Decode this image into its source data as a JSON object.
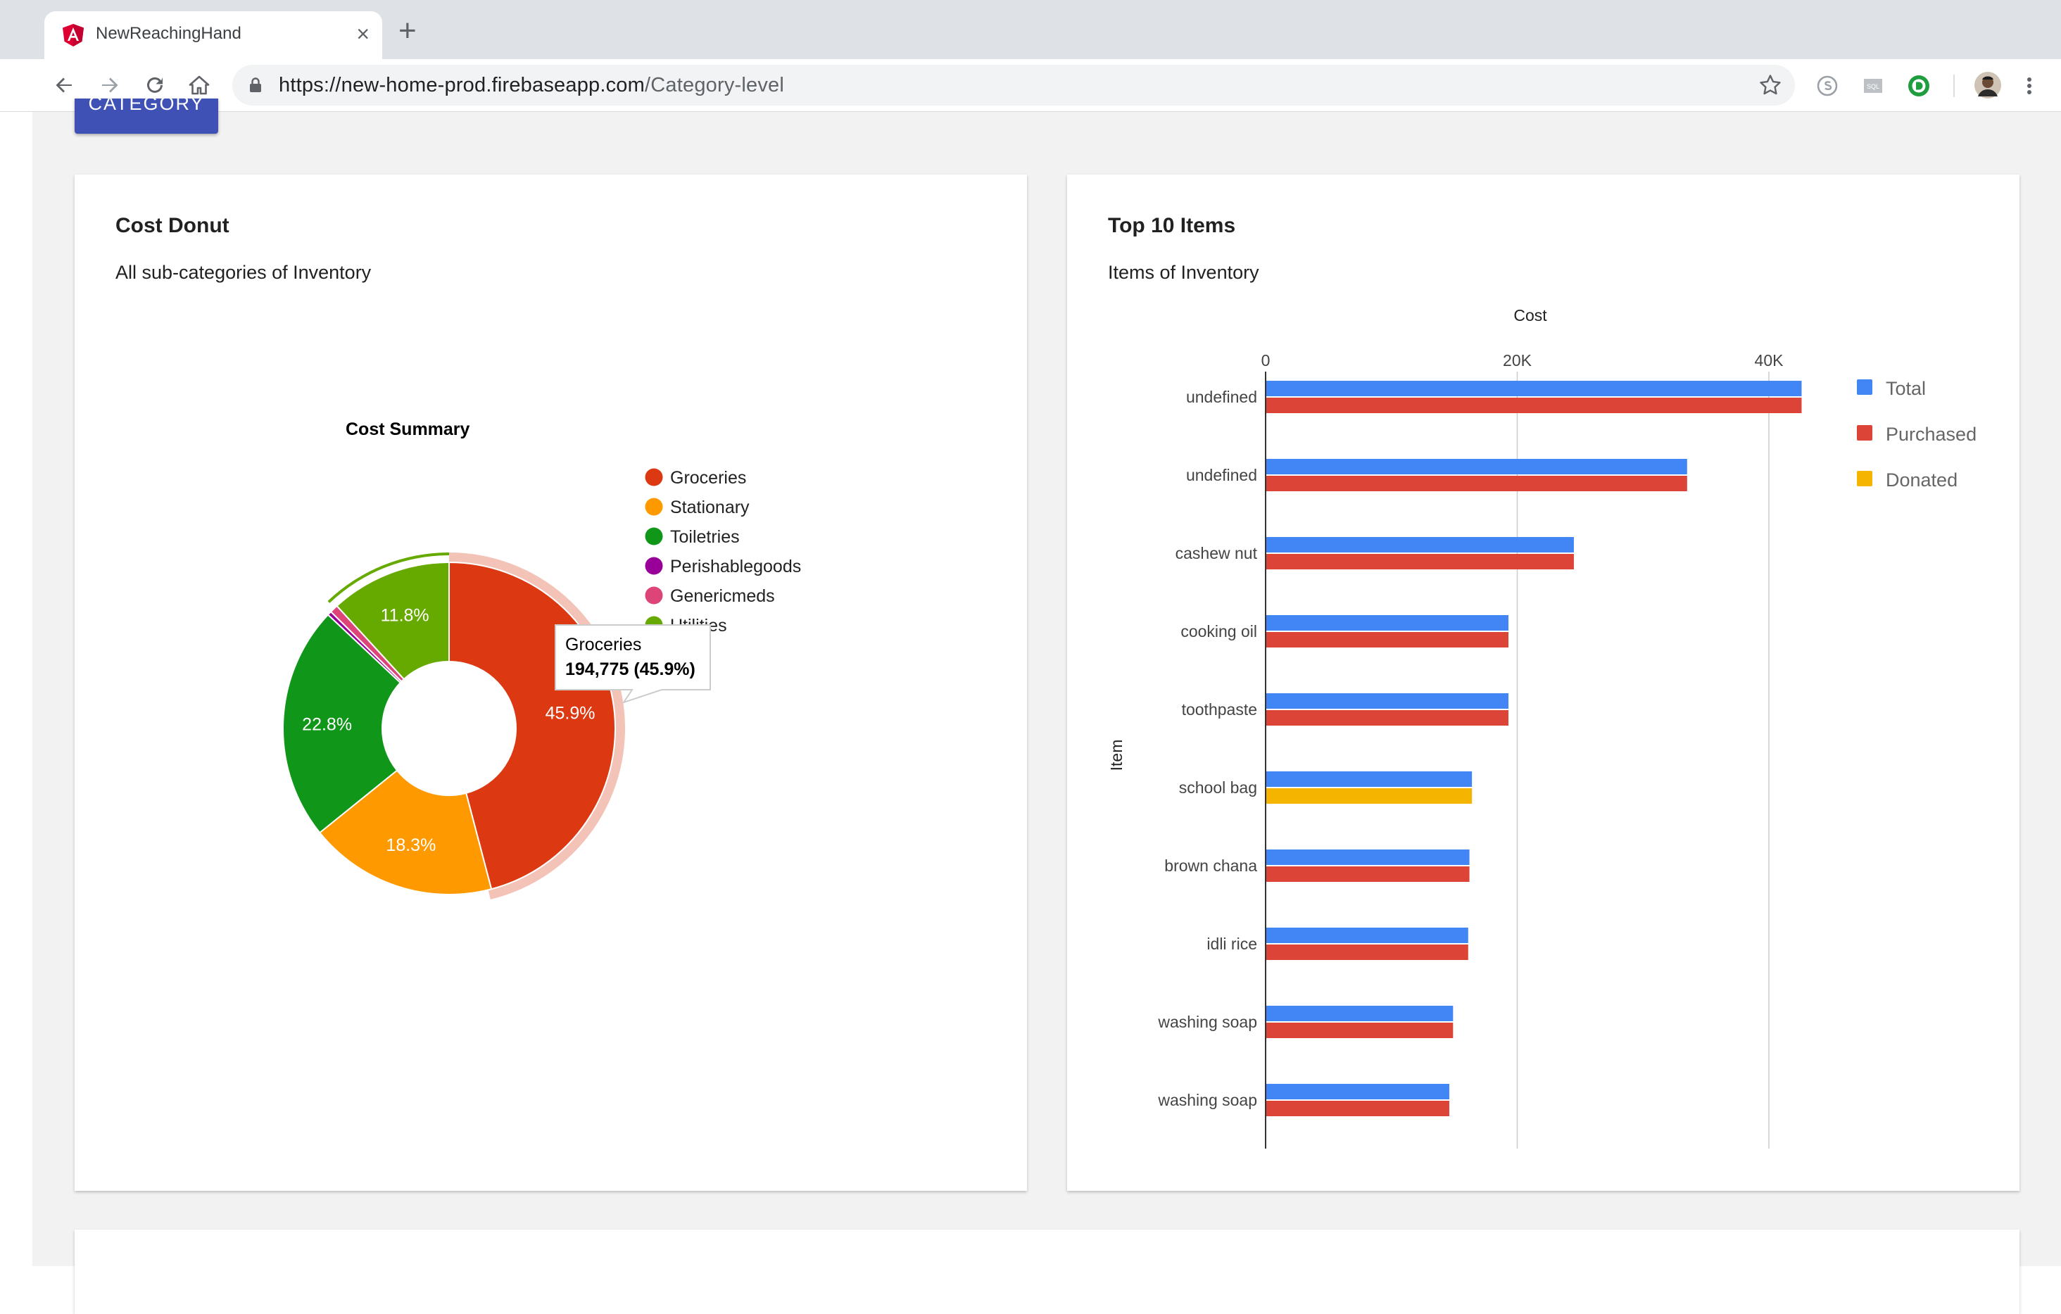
{
  "browser": {
    "tab_title": "NewReachingHand",
    "tab_close": "×",
    "new_tab": "+",
    "url_main": "https://new-home-prod.firebaseapp.com",
    "url_path": "/Category-level"
  },
  "page": {
    "category_button": "CATEGORY"
  },
  "donut_card": {
    "title": "Cost Donut",
    "subtitle": "All sub-categories of Inventory"
  },
  "bar_card": {
    "title": "Top 10 Items",
    "subtitle": "Items of Inventory"
  },
  "colors": {
    "groceries": "#dc3912",
    "stationary": "#ff9900",
    "toiletries": "#109618",
    "perishablegoods": "#990099",
    "genericmeds": "#dd4477",
    "utilities": "#66aa00",
    "total": "#4285f4",
    "purchased": "#db4437",
    "donated": "#f4b400"
  },
  "chart_data": [
    {
      "type": "pie",
      "title": "Cost Summary",
      "donut": true,
      "slices": [
        {
          "name": "Groceries",
          "percent": 45.9,
          "label": "45.9%",
          "color": "#dc3912"
        },
        {
          "name": "Stationary",
          "percent": 18.3,
          "label": "18.3%",
          "color": "#ff9900"
        },
        {
          "name": "Toiletries",
          "percent": 22.8,
          "label": "22.8%",
          "color": "#109618"
        },
        {
          "name": "Perishablegoods",
          "percent": 0.4,
          "label": "",
          "color": "#990099"
        },
        {
          "name": "Genericmeds",
          "percent": 0.8,
          "label": "",
          "color": "#dd4477"
        },
        {
          "name": "Utilities",
          "percent": 11.8,
          "label": "11.8%",
          "color": "#66aa00"
        }
      ],
      "legend": [
        "Groceries",
        "Stationary",
        "Toiletries",
        "Perishablegoods",
        "Genericmeds",
        "Utilities"
      ],
      "legend_placement": "right",
      "tooltip": {
        "title": "Groceries",
        "value": "194,775 (45.9%)"
      }
    },
    {
      "type": "bar",
      "orientation": "horizontal",
      "xlabel": "Cost",
      "ylabel": "Item",
      "xlim": [
        0,
        50000
      ],
      "xticks": [
        0,
        20000,
        40000
      ],
      "xtick_labels": [
        "0",
        "20K",
        "40K"
      ],
      "grid": true,
      "legend_placement": "right",
      "categories": [
        "undefined",
        "undefined",
        "cashew nut",
        "cooking oil",
        "toothpaste",
        "school bag",
        "brown chana",
        "idli rice",
        "washing soap",
        "washing soap"
      ],
      "series": [
        {
          "name": "Total",
          "color": "#4285f4",
          "values": [
            42600,
            33500,
            24500,
            19300,
            19300,
            16400,
            16200,
            16100,
            14900,
            14600
          ]
        },
        {
          "name": "Purchased",
          "color": "#db4437",
          "values": [
            42600,
            33500,
            24500,
            19300,
            19300,
            0,
            16200,
            16100,
            14900,
            14600
          ]
        },
        {
          "name": "Donated",
          "color": "#f4b400",
          "values": [
            0,
            0,
            0,
            0,
            0,
            16400,
            0,
            0,
            0,
            0
          ]
        }
      ]
    }
  ]
}
